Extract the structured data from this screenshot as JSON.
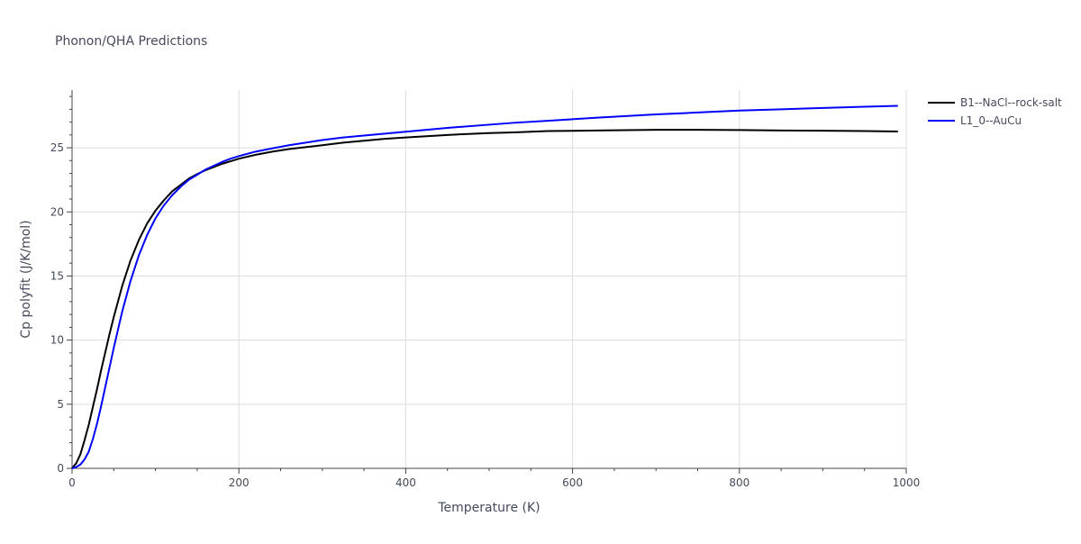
{
  "chart": {
    "title": "Phonon/QHA Predictions",
    "xlabel": "Temperature (K)",
    "ylabel": "Cp polyfit (J/K/mol)"
  },
  "colors": {
    "grid": "#dcdcdc",
    "axis": "#444444",
    "text": "#444a5a",
    "series": [
      "#000000",
      "#0000ff"
    ]
  },
  "chart_data": {
    "type": "line",
    "title": "Phonon/QHA Predictions",
    "xlabel": "Temperature (K)",
    "ylabel": "Cp polyfit (J/K/mol)",
    "xlim": [
      0,
      1000
    ],
    "ylim": [
      0,
      29.5
    ],
    "x_ticks": [
      0,
      200,
      400,
      600,
      800,
      1000
    ],
    "y_ticks": [
      0,
      5,
      10,
      15,
      20,
      25
    ],
    "grid": true,
    "legend": "top-right",
    "series": [
      {
        "name": "B1--NaCl--rock-salt",
        "color": "#000000",
        "x": [
          0,
          5,
          10,
          15,
          20,
          25,
          30,
          35,
          40,
          45,
          50,
          60,
          70,
          80,
          90,
          100,
          110,
          120,
          130,
          140,
          150,
          160,
          170,
          180,
          190,
          200,
          220,
          240,
          260,
          280,
          300,
          325,
          350,
          375,
          400,
          450,
          500,
          530,
          570,
          630,
          700,
          750,
          800,
          850,
          900,
          950,
          990
        ],
        "y": [
          0,
          0.4,
          1.1,
          2.2,
          3.4,
          4.8,
          6.2,
          7.7,
          9.1,
          10.5,
          11.8,
          14.2,
          16.2,
          17.8,
          19.1,
          20.1,
          20.9,
          21.6,
          22.1,
          22.6,
          22.95,
          23.25,
          23.5,
          23.75,
          23.95,
          24.15,
          24.45,
          24.7,
          24.9,
          25.05,
          25.2,
          25.4,
          25.55,
          25.7,
          25.8,
          26.0,
          26.15,
          26.2,
          26.3,
          26.35,
          26.4,
          26.4,
          26.38,
          26.35,
          26.33,
          26.3,
          26.27
        ]
      },
      {
        "name": "L1_0--AuCu",
        "color": "#0000ff",
        "x": [
          0,
          5,
          10,
          15,
          20,
          25,
          30,
          35,
          40,
          45,
          50,
          60,
          70,
          80,
          90,
          100,
          110,
          120,
          130,
          140,
          150,
          160,
          170,
          180,
          190,
          200,
          220,
          240,
          260,
          280,
          300,
          325,
          350,
          375,
          400,
          450,
          500,
          530,
          570,
          630,
          700,
          750,
          800,
          850,
          900,
          950,
          990
        ],
        "y": [
          0,
          0.1,
          0.3,
          0.7,
          1.3,
          2.3,
          3.5,
          4.9,
          6.4,
          7.9,
          9.4,
          12.2,
          14.6,
          16.6,
          18.2,
          19.5,
          20.5,
          21.3,
          21.95,
          22.5,
          22.9,
          23.3,
          23.6,
          23.9,
          24.15,
          24.35,
          24.7,
          24.95,
          25.2,
          25.4,
          25.6,
          25.8,
          25.95,
          26.1,
          26.25,
          26.55,
          26.8,
          26.95,
          27.1,
          27.35,
          27.6,
          27.75,
          27.9,
          28.0,
          28.1,
          28.2,
          28.27
        ]
      }
    ]
  }
}
